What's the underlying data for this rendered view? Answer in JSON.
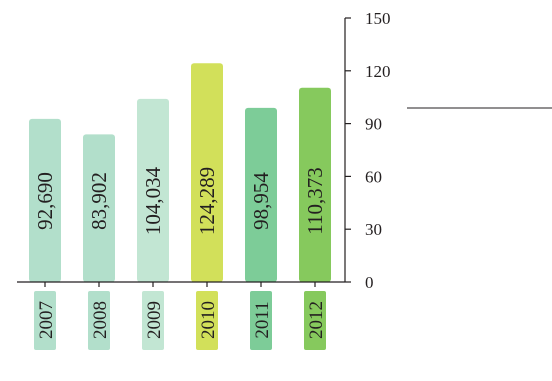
{
  "chart_data": {
    "type": "bar",
    "categories": [
      "2007",
      "2008",
      "2009",
      "2010",
      "2011",
      "2012"
    ],
    "values": [
      92690,
      83902,
      104034,
      124289,
      98954,
      110373
    ],
    "value_labels": [
      "92,690",
      "83,902",
      "104,034",
      "124,289",
      "98,954",
      "110,373"
    ],
    "bar_colors": [
      "#b2dfcb",
      "#b2dfcb",
      "#c2e6d3",
      "#d2e05a",
      "#7dcc98",
      "#86c95d"
    ],
    "label_bg_colors": [
      "#b2dfcb",
      "#b2dfcb",
      "#c2e6d3",
      "#d2e05a",
      "#7dcc98",
      "#86c95d"
    ],
    "y_ticks": [
      "150",
      "120",
      "90",
      "60",
      "30",
      "0"
    ],
    "y_tick_values": [
      150,
      120,
      90,
      60,
      30,
      0
    ],
    "ylim": [
      0,
      150
    ],
    "value_scale": 1000,
    "y_axis_side": "right",
    "grid": false,
    "text_color": "#231f20"
  }
}
